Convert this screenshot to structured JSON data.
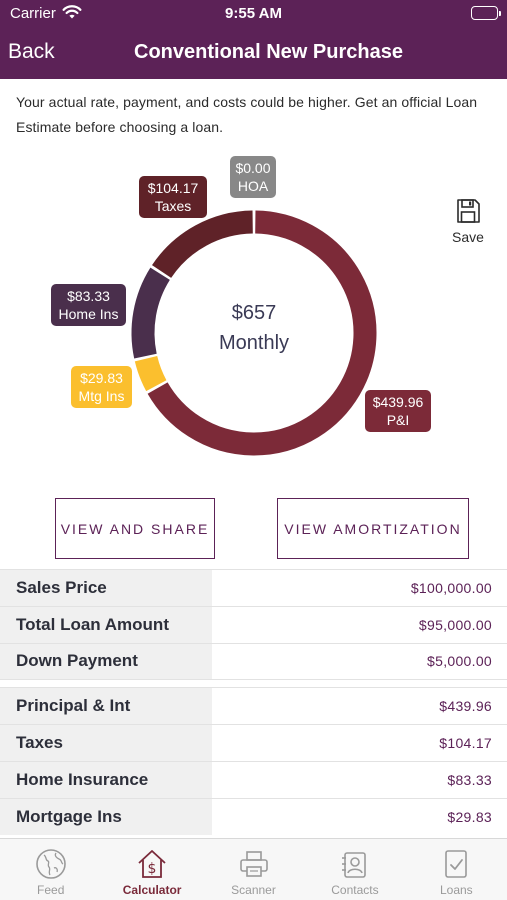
{
  "status_bar": {
    "carrier": "Carrier",
    "time": "9:55 AM"
  },
  "nav": {
    "back_label": "Back",
    "title": "Conventional New Purchase"
  },
  "disclaimer": "Your actual rate, payment, and costs could be higher. Get an official Loan Estimate before choosing a loan.",
  "chart_data": {
    "type": "pie",
    "center_amount": "$657",
    "center_period": "Monthly",
    "slices": [
      {
        "name": "P&I",
        "value": 439.96,
        "label": "$439.96",
        "color": "#7c2a38"
      },
      {
        "name": "Mtg Ins",
        "value": 29.83,
        "label": "$29.83",
        "color": "#fbbf2e"
      },
      {
        "name": "Home Ins",
        "value": 83.33,
        "label": "$83.33",
        "color": "#4a2f4c"
      },
      {
        "name": "Taxes",
        "value": 104.17,
        "label": "$104.17",
        "color": "#5f2228"
      },
      {
        "name": "HOA",
        "value": 0.0,
        "label": "$0.00",
        "color": "#888888"
      }
    ]
  },
  "save_label": "Save",
  "buttons": {
    "share": "VIEW AND SHARE",
    "amortization": "VIEW AMORTIZATION"
  },
  "loan_rows": [
    {
      "label": "Sales Price",
      "value": "$100,000.00"
    },
    {
      "label": "Total Loan Amount",
      "value": "$95,000.00"
    },
    {
      "label": "Down Payment",
      "value": "$5,000.00"
    }
  ],
  "payment_rows": [
    {
      "label": "Principal & Int",
      "value": "$439.96"
    },
    {
      "label": "Taxes",
      "value": "$104.17"
    },
    {
      "label": "Home Insurance",
      "value": "$83.33"
    },
    {
      "label": "Mortgage Ins",
      "value": "$29.83"
    }
  ],
  "tabs": [
    {
      "label": "Feed",
      "icon": "globe-icon",
      "active": false
    },
    {
      "label": "Calculator",
      "icon": "house-dollar-icon",
      "active": true
    },
    {
      "label": "Scanner",
      "icon": "printer-icon",
      "active": false
    },
    {
      "label": "Contacts",
      "icon": "contacts-icon",
      "active": false
    },
    {
      "label": "Loans",
      "icon": "document-check-icon",
      "active": false
    }
  ],
  "colors": {
    "brand": "#5c2257",
    "accent": "#7a2a3a"
  }
}
